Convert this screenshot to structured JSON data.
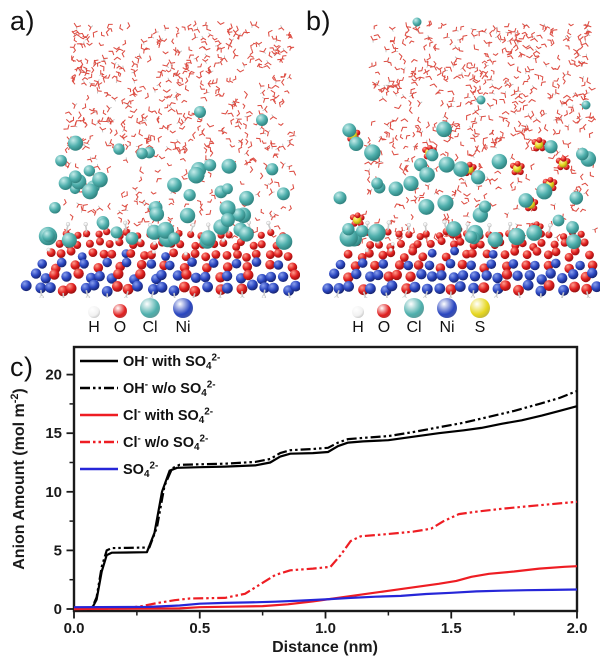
{
  "figure": {
    "panels": {
      "a": {
        "label": "a)"
      },
      "b": {
        "label": "b)"
      },
      "c": {
        "label": "c)"
      }
    },
    "atom_legend": {
      "a": [
        {
          "symbol": "H",
          "color": "#f1f1f1",
          "diameter": 12
        },
        {
          "symbol": "O",
          "color": "#e01f1f",
          "diameter": 14
        },
        {
          "symbol": "Cl",
          "color": "#4fb0ad",
          "diameter": 20
        },
        {
          "symbol": "Ni",
          "color": "#2a46c0",
          "diameter": 20
        }
      ],
      "b": [
        {
          "symbol": "H",
          "color": "#f1f1f1",
          "diameter": 12
        },
        {
          "symbol": "O",
          "color": "#e01f1f",
          "diameter": 14
        },
        {
          "symbol": "Cl",
          "color": "#4fb0ad",
          "diameter": 20
        },
        {
          "symbol": "Ni",
          "color": "#2a46c0",
          "diameter": 20
        },
        {
          "symbol": "S",
          "color": "#e6d71f",
          "diameter": 20
        }
      ]
    },
    "scene": {
      "a": {
        "waters": 560,
        "chloride_ions": 50,
        "sulfates": 0
      },
      "b": {
        "waters": 560,
        "chloride_ions": 42,
        "sulfates": 11
      }
    },
    "atom_colors": {
      "H": "#f1f1f1",
      "O": "#e01f1f",
      "Cl": "#4fb0ad",
      "Ni": "#2a46c0",
      "S": "#e6d71f",
      "water_stick": "#d8352a"
    }
  },
  "chart_data": {
    "type": "line",
    "title": "",
    "xlabel": "Distance (nm)",
    "ylabel": "Anion Amount (mol m^-2^)",
    "xlim": [
      0,
      2.0
    ],
    "ylim": [
      0,
      22.5
    ],
    "xticks": [
      0.0,
      0.5,
      1.0,
      1.5,
      2.0
    ],
    "xtick_labels": [
      "0.0",
      "0.5",
      "1.0",
      "1.5",
      "2.0"
    ],
    "xminor": [
      0.25,
      0.75,
      1.25,
      1.75
    ],
    "yticks": [
      0,
      5,
      10,
      15,
      20
    ],
    "ytick_labels": [
      "0",
      "5",
      "10",
      "15",
      "20"
    ],
    "yminor": [
      2.5,
      7.5,
      12.5,
      17.5
    ],
    "grid": false,
    "legend_position": "top-left",
    "series": [
      {
        "name": "OH- with SO4 2-",
        "label": "OH^-^ with SO_4_^2-^",
        "color": "#000000",
        "style": "solid",
        "points": [
          [
            0,
            0
          ],
          [
            0.07,
            0
          ],
          [
            0.09,
            0.8
          ],
          [
            0.11,
            3.2
          ],
          [
            0.13,
            4.6
          ],
          [
            0.15,
            4.8
          ],
          [
            0.29,
            4.85
          ],
          [
            0.32,
            6.5
          ],
          [
            0.35,
            10.0
          ],
          [
            0.38,
            11.8
          ],
          [
            0.41,
            12.05
          ],
          [
            0.5,
            12.1
          ],
          [
            0.6,
            12.15
          ],
          [
            0.72,
            12.25
          ],
          [
            0.78,
            12.5
          ],
          [
            0.82,
            13.0
          ],
          [
            0.86,
            13.25
          ],
          [
            0.95,
            13.3
          ],
          [
            1.01,
            13.4
          ],
          [
            1.05,
            13.9
          ],
          [
            1.09,
            14.2
          ],
          [
            1.15,
            14.3
          ],
          [
            1.25,
            14.4
          ],
          [
            1.35,
            14.7
          ],
          [
            1.45,
            15.0
          ],
          [
            1.55,
            15.25
          ],
          [
            1.62,
            15.45
          ],
          [
            1.7,
            15.8
          ],
          [
            1.78,
            16.1
          ],
          [
            1.86,
            16.5
          ],
          [
            1.93,
            16.9
          ],
          [
            2.0,
            17.3
          ]
        ]
      },
      {
        "name": "OH- w/o SO4 2-",
        "label": "OH^-^ w/o SO_4_^2-^",
        "color": "#000000",
        "style": "dashdotdot",
        "points": [
          [
            0,
            0
          ],
          [
            0.07,
            0
          ],
          [
            0.09,
            1.0
          ],
          [
            0.11,
            3.6
          ],
          [
            0.13,
            5.0
          ],
          [
            0.15,
            5.2
          ],
          [
            0.3,
            5.25
          ],
          [
            0.33,
            7.0
          ],
          [
            0.36,
            10.5
          ],
          [
            0.39,
            12.0
          ],
          [
            0.42,
            12.3
          ],
          [
            0.5,
            12.35
          ],
          [
            0.6,
            12.4
          ],
          [
            0.72,
            12.55
          ],
          [
            0.78,
            12.8
          ],
          [
            0.82,
            13.3
          ],
          [
            0.86,
            13.55
          ],
          [
            0.95,
            13.65
          ],
          [
            1.01,
            13.75
          ],
          [
            1.05,
            14.2
          ],
          [
            1.09,
            14.5
          ],
          [
            1.15,
            14.6
          ],
          [
            1.25,
            14.75
          ],
          [
            1.35,
            15.1
          ],
          [
            1.45,
            15.5
          ],
          [
            1.55,
            15.9
          ],
          [
            1.65,
            16.4
          ],
          [
            1.75,
            16.9
          ],
          [
            1.85,
            17.5
          ],
          [
            1.93,
            18.0
          ],
          [
            2.0,
            18.6
          ]
        ]
      },
      {
        "name": "Cl- with SO4 2-",
        "label": "Cl^-^ with SO_4_^2-^",
        "color": "#ee1d23",
        "style": "solid",
        "points": [
          [
            0,
            0
          ],
          [
            0.42,
            0.05
          ],
          [
            0.5,
            0.15
          ],
          [
            0.62,
            0.2
          ],
          [
            0.75,
            0.25
          ],
          [
            0.85,
            0.4
          ],
          [
            0.95,
            0.65
          ],
          [
            1.05,
            0.95
          ],
          [
            1.15,
            1.25
          ],
          [
            1.25,
            1.55
          ],
          [
            1.35,
            1.85
          ],
          [
            1.45,
            2.15
          ],
          [
            1.52,
            2.4
          ],
          [
            1.58,
            2.75
          ],
          [
            1.65,
            3.0
          ],
          [
            1.75,
            3.2
          ],
          [
            1.85,
            3.45
          ],
          [
            1.95,
            3.6
          ],
          [
            2.0,
            3.65
          ]
        ]
      },
      {
        "name": "Cl- w/o SO4 2-",
        "label": "Cl^-^ w/o SO_4_^2-^",
        "color": "#ee1d23",
        "style": "dashdotdot",
        "points": [
          [
            0,
            0
          ],
          [
            0.2,
            0.05
          ],
          [
            0.27,
            0.25
          ],
          [
            0.33,
            0.5
          ],
          [
            0.4,
            0.75
          ],
          [
            0.46,
            0.9
          ],
          [
            0.6,
            0.95
          ],
          [
            0.68,
            1.3
          ],
          [
            0.74,
            2.1
          ],
          [
            0.8,
            2.9
          ],
          [
            0.86,
            3.3
          ],
          [
            0.95,
            3.45
          ],
          [
            1.02,
            3.6
          ],
          [
            1.06,
            4.6
          ],
          [
            1.1,
            5.8
          ],
          [
            1.14,
            6.2
          ],
          [
            1.25,
            6.4
          ],
          [
            1.35,
            6.6
          ],
          [
            1.42,
            6.85
          ],
          [
            1.47,
            7.5
          ],
          [
            1.53,
            8.1
          ],
          [
            1.6,
            8.3
          ],
          [
            1.7,
            8.55
          ],
          [
            1.8,
            8.75
          ],
          [
            1.9,
            8.95
          ],
          [
            2.0,
            9.15
          ]
        ]
      },
      {
        "name": "SO4 2-",
        "label": "SO_4_^2-^",
        "color": "#2626d8",
        "style": "solid",
        "points": [
          [
            0,
            0.15
          ],
          [
            0.3,
            0.18
          ],
          [
            0.42,
            0.3
          ],
          [
            0.5,
            0.45
          ],
          [
            0.6,
            0.52
          ],
          [
            0.7,
            0.56
          ],
          [
            0.8,
            0.62
          ],
          [
            0.9,
            0.72
          ],
          [
            1.0,
            0.82
          ],
          [
            1.1,
            0.95
          ],
          [
            1.2,
            1.05
          ],
          [
            1.3,
            1.12
          ],
          [
            1.4,
            1.28
          ],
          [
            1.5,
            1.38
          ],
          [
            1.6,
            1.5
          ],
          [
            1.7,
            1.56
          ],
          [
            1.8,
            1.6
          ],
          [
            1.9,
            1.63
          ],
          [
            2.0,
            1.66
          ]
        ]
      }
    ]
  }
}
